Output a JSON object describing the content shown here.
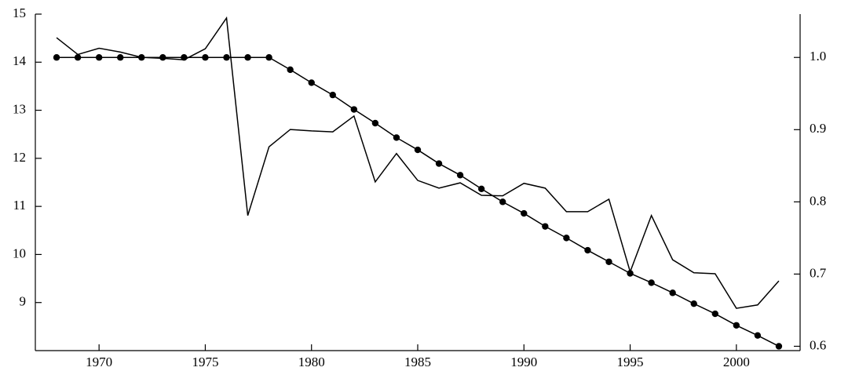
{
  "chart_data": {
    "type": "line",
    "x": [
      1968,
      1969,
      1970,
      1971,
      1972,
      1973,
      1974,
      1975,
      1976,
      1977,
      1978,
      1979,
      1980,
      1981,
      1982,
      1983,
      1984,
      1985,
      1986,
      1987,
      1988,
      1989,
      1990,
      1991,
      1992,
      1993,
      1994,
      1995,
      1996,
      1997,
      1998,
      1999,
      2000,
      2001,
      2002
    ],
    "series": [
      {
        "color": "#000000",
        "values": [
          14.51,
          14.16,
          14.29,
          14.21,
          14.1,
          14.08,
          14.05,
          14.28,
          14.92,
          10.81,
          12.24,
          12.6,
          12.57,
          12.55,
          12.88,
          11.51,
          12.1,
          11.54,
          11.38,
          11.49,
          11.23,
          11.22,
          11.48,
          11.38,
          10.89,
          10.89,
          11.15,
          9.64,
          10.81,
          9.89,
          9.62,
          9.6,
          8.88,
          8.95,
          9.45
        ]
      },
      {
        "color": "#000000",
        "axis": "y2",
        "marker": "circle",
        "values": [
          1.0,
          1.0,
          1.0,
          1.0,
          1.0,
          1.0,
          1.0,
          1.0,
          1.0,
          1.0,
          1.0,
          0.983,
          0.965,
          0.948,
          0.928,
          0.909,
          0.889,
          0.872,
          0.853,
          0.837,
          0.818,
          0.8,
          0.784,
          0.766,
          0.75,
          0.733,
          0.717,
          0.701,
          0.688,
          0.674,
          0.659,
          0.645,
          0.629,
          0.615,
          0.6
        ]
      }
    ],
    "xlim": [
      1967,
      2003
    ],
    "xticks": [
      1970,
      1975,
      1980,
      1985,
      1990,
      1995,
      2000
    ],
    "ylim": [
      8,
      15
    ],
    "yticks": [
      9,
      10,
      11,
      12,
      13,
      14,
      15
    ],
    "y2lim": [
      0.594,
      1.06
    ],
    "y2ticks": [
      {
        "value": 0.6,
        "label": "0.6"
      },
      0.7,
      0.8,
      0.9,
      {
        "value": 1.0,
        "label": "1.0"
      }
    ],
    "grid": false
  }
}
